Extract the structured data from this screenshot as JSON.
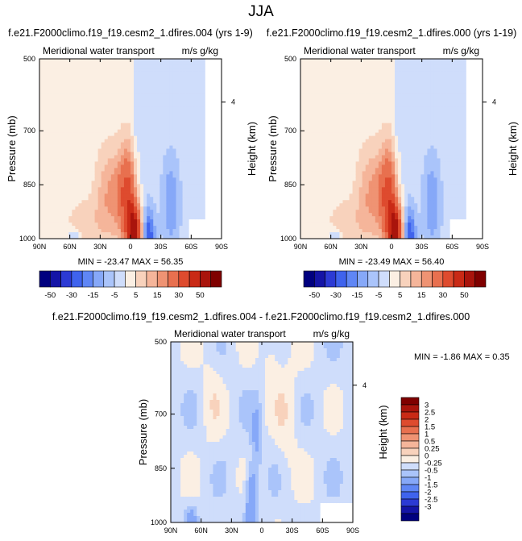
{
  "page_title": "JJA",
  "colors": {
    "neg": [
      "#00007f",
      "#1414a6",
      "#2c3ad4",
      "#3f63ed",
      "#5f86f5",
      "#86a8f8",
      "#aac4fa",
      "#cfddfb"
    ],
    "zero": "#fbefe3",
    "pos": [
      "#f8d2bc",
      "#f5b59a",
      "#ef9373",
      "#e8704f",
      "#de4b2e",
      "#c92a16",
      "#a9140c",
      "#7f0000"
    ]
  },
  "chart_data": [
    {
      "type": "heatmap",
      "title": "f.e21.F2000climo.f19_f19.cesm2_1.dfires.004 (yrs 1-9)",
      "left_label": "Meridional water transport",
      "right_label": "m/s g/kg",
      "ylabel": "Pressure (mb)",
      "ylabel_right": "Height (km)",
      "xticks": [
        "90N",
        "60N",
        "30N",
        "0",
        "30S",
        "60S",
        "90S"
      ],
      "yticks": [
        "500",
        "700",
        "850",
        "1000"
      ],
      "yticks_right": [
        "4"
      ],
      "stats": "MIN = -23.47   MAX =  56.35",
      "xlim": [
        90,
        -90
      ],
      "ylim": [
        1000,
        500
      ],
      "levels": [
        -50,
        -40,
        -30,
        -20,
        -15,
        -10,
        -5,
        0,
        5,
        10,
        15,
        20,
        30,
        40,
        50
      ],
      "colorbar_labels": [
        "-50",
        "-30",
        "-15",
        "-5",
        "5",
        "15",
        "30",
        "50"
      ],
      "colorbar_orientation": "horizontal"
    },
    {
      "type": "heatmap",
      "title": "f.e21.F2000climo.f19_f19.cesm2_1.dfires.000 (yrs 1-19)",
      "left_label": "Meridional water transport",
      "right_label": "m/s g/kg",
      "ylabel": "Pressure (mb)",
      "ylabel_right": "Height (km)",
      "xticks": [
        "90N",
        "60N",
        "30N",
        "0",
        "30S",
        "60S",
        "90S"
      ],
      "yticks": [
        "500",
        "700",
        "850",
        "1000"
      ],
      "yticks_right": [
        "4"
      ],
      "stats": "MIN = -23.49   MAX =  56.40",
      "xlim": [
        90,
        -90
      ],
      "ylim": [
        1000,
        500
      ],
      "levels": [
        -50,
        -40,
        -30,
        -20,
        -15,
        -10,
        -5,
        0,
        5,
        10,
        15,
        20,
        30,
        40,
        50
      ],
      "colorbar_labels": [
        "-50",
        "-30",
        "-15",
        "-5",
        "5",
        "15",
        "30",
        "50"
      ],
      "colorbar_orientation": "horizontal"
    },
    {
      "type": "heatmap",
      "title": "f.e21.F2000climo.f19_f19.cesm2_1.dfires.004 - f.e21.F2000climo.f19_f19.cesm2_1.dfires.000",
      "left_label": "Meridional water transport",
      "right_label": "m/s g/kg",
      "ylabel": "Pressure (mb)",
      "ylabel_right": "Height (km)",
      "xticks": [
        "90N",
        "60N",
        "30N",
        "0",
        "30S",
        "60S",
        "90S"
      ],
      "yticks": [
        "500",
        "700",
        "850",
        "1000"
      ],
      "yticks_right": [
        "4"
      ],
      "stats": "MIN = -1.86   MAX =  0.35",
      "xlim": [
        90,
        -90
      ],
      "ylim": [
        1000,
        500
      ],
      "levels": [
        -3,
        -2.5,
        -2,
        -1.5,
        -1,
        -0.5,
        -0.25,
        0,
        0.25,
        0.5,
        1,
        1.5,
        2,
        2.5,
        3
      ],
      "colorbar_labels": [
        "3",
        "2.5",
        "2",
        "1.5",
        "1",
        "0.5",
        "0.25",
        "0",
        "-0.25",
        "-0.5",
        "-1",
        "-1.5",
        "-2",
        "-2.5",
        "-3"
      ],
      "colorbar_orientation": "vertical"
    }
  ]
}
